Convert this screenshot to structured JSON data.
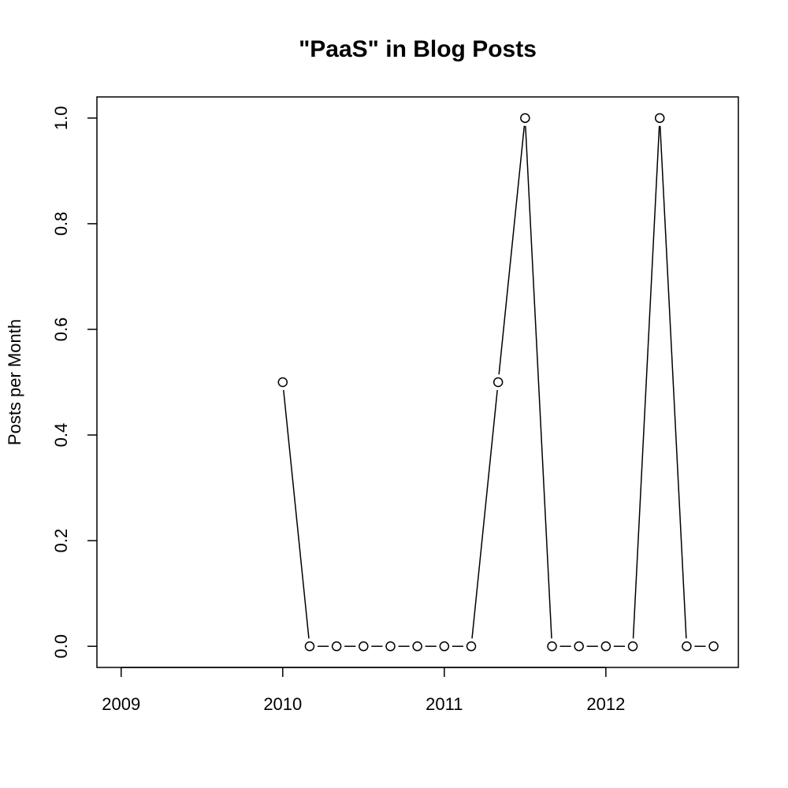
{
  "chart_data": {
    "type": "line",
    "title": "\"PaaS\" in Blog Posts",
    "xlabel": "",
    "ylabel": "Posts per Month",
    "x": [
      2010.0,
      2010.1667,
      2010.3333,
      2010.5,
      2010.6667,
      2010.8333,
      2011.0,
      2011.1667,
      2011.3333,
      2011.5,
      2011.6667,
      2011.8333,
      2012.0,
      2012.1667,
      2012.3333,
      2012.5,
      2012.6667
    ],
    "y": [
      0.5,
      0,
      0,
      0,
      0,
      0,
      0,
      0,
      0.5,
      1,
      0,
      0,
      0,
      0,
      1,
      0,
      0
    ],
    "xlim": [
      2008.85,
      2012.82
    ],
    "ylim": [
      -0.04,
      1.04
    ],
    "xticks": [
      2009,
      2010,
      2011,
      2012
    ],
    "xtick_labels": [
      "2009",
      "2010",
      "2011",
      "2012"
    ],
    "yticks": [
      0,
      0.2,
      0.4,
      0.6,
      0.8,
      1
    ],
    "ytick_labels": [
      "0.0",
      "0.2",
      "0.4",
      "0.6",
      "0.8",
      "1.0"
    ],
    "grid": false,
    "line_color": "#000000",
    "marker": "open-circle"
  }
}
